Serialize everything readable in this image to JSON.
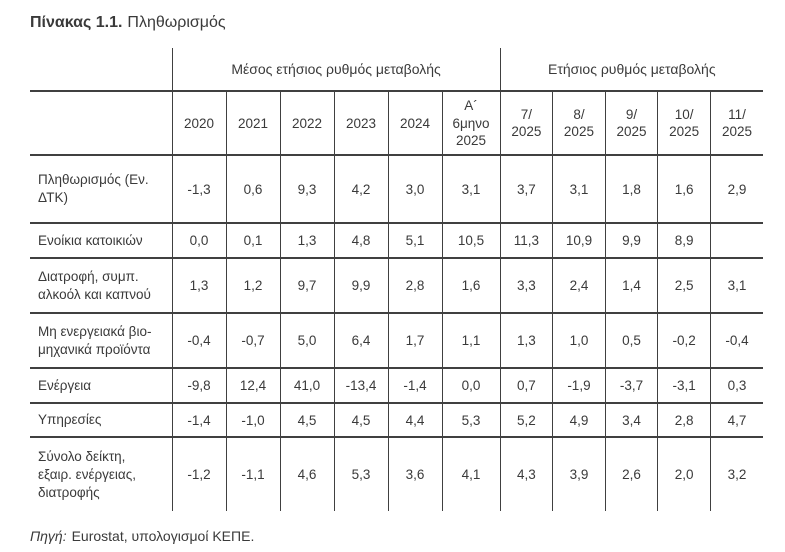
{
  "title": {
    "label_bold": "Πίνακας 1.1.",
    "label_rest": "Πληθωρισμός"
  },
  "table": {
    "group_headers": [
      {
        "label": "Μέσος ετήσιος ρυθμός μεταβολής",
        "span": 6
      },
      {
        "label": "Ετήσιος ρυθμός μεταβολής",
        "span": 5
      }
    ],
    "column_headers": [
      "2020",
      "2021",
      "2022",
      "2023",
      "2024",
      "Α´\n6μηνο\n2025",
      "7/\n2025",
      "8/\n2025",
      "9/\n2025",
      "10/\n2025",
      "11/\n2025"
    ],
    "rows": [
      {
        "label": "Πληθωρισμός (Εν.\nΔΤΚ)",
        "values": [
          "-1,3",
          "0,6",
          "9,3",
          "4,2",
          "3,0",
          "3,1",
          "3,7",
          "3,1",
          "1,8",
          "1,6",
          "2,9"
        ]
      },
      {
        "label": "Ενοίκια κατοικιών",
        "values": [
          "0,0",
          "0,1",
          "1,3",
          "4,8",
          "5,1",
          "10,5",
          "11,3",
          "10,9",
          "9,9",
          "8,9",
          ""
        ]
      },
      {
        "label": "Διατροφή, συμπ.\nαλκοόλ και καπνού",
        "values": [
          "1,3",
          "1,2",
          "9,7",
          "9,9",
          "2,8",
          "1,6",
          "3,3",
          "2,4",
          "1,4",
          "2,5",
          "3,1"
        ]
      },
      {
        "label": "Μη ενεργειακά βιο-\nμηχανικά προϊόντα",
        "values": [
          "-0,4",
          "-0,7",
          "5,0",
          "6,4",
          "1,7",
          "1,1",
          "1,3",
          "1,0",
          "0,5",
          "-0,2",
          "-0,4"
        ]
      },
      {
        "label": "Ενέργεια",
        "values": [
          "-9,8",
          "12,4",
          "41,0",
          "-13,4",
          "-1,4",
          "0,0",
          "0,7",
          "-1,9",
          "-3,7",
          "-3,1",
          "0,3"
        ]
      },
      {
        "label": "Υπηρεσίες",
        "values": [
          "-1,4",
          "-1,0",
          "4,5",
          "4,5",
          "4,4",
          "5,3",
          "5,2",
          "4,9",
          "3,4",
          "2,8",
          "4,7"
        ]
      },
      {
        "label": "Σύνολο δείκτη,\nεξαιρ. ενέργειας,\nδιατροφής",
        "values": [
          "-1,2",
          "-1,1",
          "4,6",
          "5,3",
          "3,6",
          "4,1",
          "4,3",
          "3,9",
          "2,6",
          "2,0",
          "3,2"
        ]
      }
    ]
  },
  "source": {
    "prefix": "Πηγή:",
    "text": "Eurostat, υπολογισμοί ΚΕΠΕ."
  },
  "colors": {
    "text": "#3a3a3a",
    "line": "#404040",
    "background": "#ffffff"
  }
}
